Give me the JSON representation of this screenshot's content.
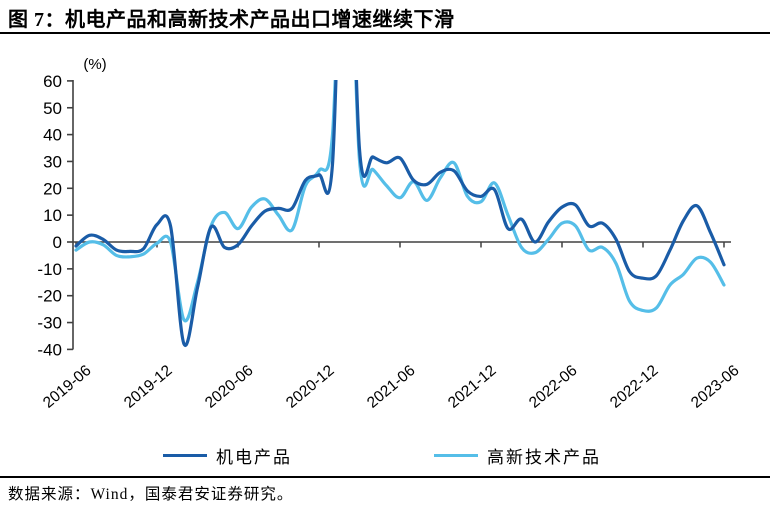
{
  "title": "图 7：机电产品和高新技术产品出口增速继续下滑",
  "source_note": "数据来源：Wind，国泰君安证券研究。",
  "y_axis": {
    "unit": "(%)",
    "ticks": [
      60,
      50,
      40,
      30,
      20,
      10,
      0,
      -10,
      -20,
      -30,
      -40
    ],
    "min": -40,
    "max": 60
  },
  "x_axis": {
    "tick_labels": [
      "2019-06",
      "2019-12",
      "2020-06",
      "2020-12",
      "2021-06",
      "2021-12",
      "2022-06",
      "2022-12",
      "2023-06"
    ]
  },
  "legend": {
    "items": [
      {
        "label": "机电产品",
        "color": "#1A5CA7"
      },
      {
        "label": "高新技术产品",
        "color": "#55BEE8"
      }
    ]
  },
  "chart_data": {
    "type": "line",
    "title": "图 7：机电产品和高新技术产品出口增速继续下滑",
    "ylabel": "(%)",
    "ylim": [
      -40,
      60
    ],
    "grid": false,
    "legend_position": "bottom",
    "note": "2021-02 spike exceeds axis maximum and is clipped at 60",
    "months": [
      "2019-06",
      "2019-07",
      "2019-08",
      "2019-09",
      "2019-10",
      "2019-11",
      "2019-12",
      "2020-01",
      "2020-02",
      "2020-03",
      "2020-04",
      "2020-05",
      "2020-06",
      "2020-07",
      "2020-08",
      "2020-09",
      "2020-10",
      "2020-11",
      "2020-12",
      "2021-01",
      "2021-02",
      "2021-03",
      "2021-04",
      "2021-05",
      "2021-06",
      "2021-07",
      "2021-08",
      "2021-09",
      "2021-10",
      "2021-11",
      "2021-12",
      "2022-01",
      "2022-02",
      "2022-03",
      "2022-04",
      "2022-05",
      "2022-06",
      "2022-07",
      "2022-08",
      "2022-09",
      "2022-10",
      "2022-11",
      "2022-12",
      "2023-01",
      "2023-02",
      "2023-03",
      "2023-04",
      "2023-05",
      "2023-06"
    ],
    "series": [
      {
        "name": "机电产品",
        "color": "#1A5CA7",
        "values": [
          -1.5,
          2.5,
          1.0,
          -3.0,
          -3.5,
          -2.5,
          6.5,
          6.0,
          -38.0,
          -17.0,
          5.5,
          -2.0,
          -1.0,
          6.0,
          11.5,
          12.5,
          12.5,
          23.0,
          25.0,
          29.0,
          160.0,
          34.5,
          31.7,
          29.5,
          31.3,
          23.0,
          21.5,
          26.0,
          26.5,
          19.0,
          17.0,
          19.5,
          5.0,
          8.5,
          0.0,
          7.5,
          13.0,
          13.8,
          6.0,
          7.0,
          1.0,
          -11.0,
          -13.5,
          -12.5,
          -3.0,
          8.0,
          13.5,
          3.5,
          -8.5
        ]
      },
      {
        "name": "高新技术产品",
        "color": "#55BEE8",
        "values": [
          -3.0,
          0.0,
          -1.0,
          -5.0,
          -5.5,
          -4.5,
          -0.5,
          0.0,
          -29.0,
          -15.0,
          6.0,
          11.0,
          5.0,
          13.0,
          16.0,
          10.0,
          4.5,
          21.0,
          26.5,
          40.0,
          150.0,
          30.5,
          27.0,
          21.0,
          16.5,
          22.5,
          15.5,
          24.0,
          29.5,
          17.0,
          15.0,
          22.0,
          10.0,
          -2.0,
          -4.0,
          1.0,
          7.0,
          6.0,
          -3.0,
          -2.0,
          -8.0,
          -22.0,
          -25.5,
          -24.5,
          -16.0,
          -12.0,
          -6.0,
          -7.5,
          -16.0
        ]
      }
    ]
  }
}
